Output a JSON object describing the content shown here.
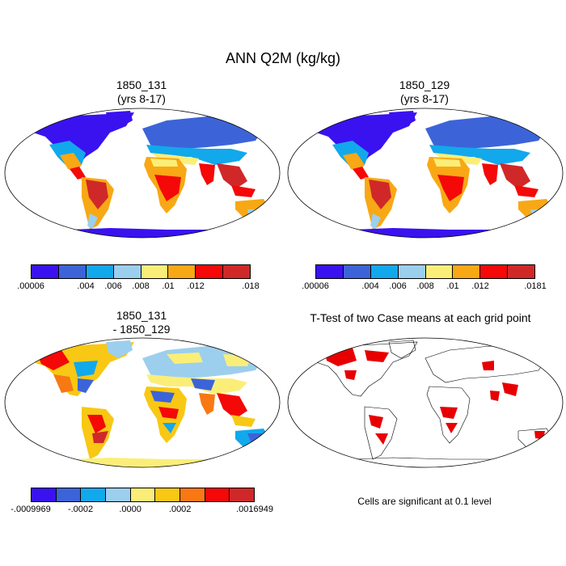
{
  "main_title": "ANN Q2M (kg/kg)",
  "panels": {
    "top_left": {
      "title_line1": "1850_131",
      "title_line2": "(yrs 8-17)"
    },
    "top_right": {
      "title_line1": "1850_129",
      "title_line2": "(yrs 8-17)"
    },
    "bottom_left": {
      "title_line1": "1850_131",
      "title_line2": "- 1850_129"
    },
    "bottom_right": {
      "title_line1": "T-Test of two Case means at each grid point"
    }
  },
  "colorbars": {
    "top_left": {
      "colors": [
        "#3a12f0",
        "#3c64d8",
        "#12a8ec",
        "#9ccfee",
        "#fbee78",
        "#f8a814",
        "#f40808",
        "#d02828"
      ],
      "labels": [
        ".00006",
        ".004",
        ".006",
        ".008",
        ".01",
        ".012",
        ".018"
      ]
    },
    "top_right": {
      "colors": [
        "#3a12f0",
        "#3c64d8",
        "#12a8ec",
        "#9ccfee",
        "#fbee78",
        "#f8a814",
        "#f40808",
        "#d02828"
      ],
      "labels": [
        ".00006",
        ".004",
        ".006",
        ".008",
        ".01",
        ".012",
        ".0181"
      ]
    },
    "bottom_left": {
      "colors": [
        "#3a12f0",
        "#3c64d8",
        "#12a8ec",
        "#9ccfee",
        "#fbee78",
        "#f8c814",
        "#f87814",
        "#f40808",
        "#d02828"
      ],
      "labels": [
        "-.0009969",
        "-.0002",
        ".0000",
        ".0002",
        ".0016949"
      ]
    }
  },
  "significance_note": "Cells are significant at 0.1 level",
  "significance_color": "#e80000"
}
